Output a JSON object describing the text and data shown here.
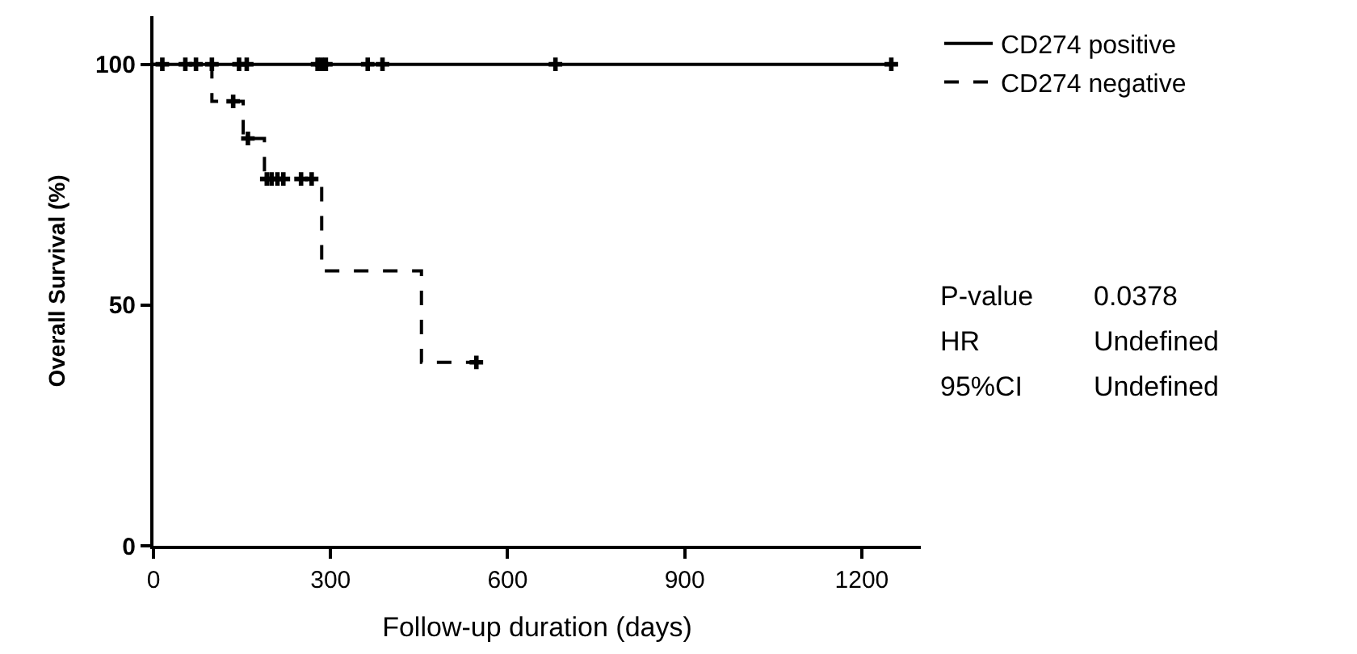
{
  "chart_data": {
    "type": "step",
    "xlabel": "Follow-up duration (days)",
    "ylabel": "Overall Survival (%)",
    "xlim": [
      0,
      1300
    ],
    "xticks": [
      0,
      300,
      600,
      900,
      1200
    ],
    "ylim": [
      0,
      110
    ],
    "yticks": [
      0,
      50,
      100
    ],
    "legend": "top right",
    "series": [
      {
        "name": "CD274 positive",
        "color": "#000000",
        "line_style": "solid",
        "x": [
          0,
          1250
        ],
        "values": [
          100,
          100
        ]
      },
      {
        "name": "CD274 negative",
        "color": "#000000",
        "line_style": "dashed",
        "x": [
          0,
          99,
          152,
          188,
          285,
          454,
          547
        ],
        "values": [
          100,
          92.3,
          84.6,
          76.2,
          57.1,
          38.1,
          38.1
        ]
      },
      {
        "type": "scatter",
        "marker": "cross",
        "color": "#000000",
        "x": [
          15,
          54,
          72,
          99,
          145,
          158,
          278,
          285,
          292,
          363,
          388,
          681,
          1250
        ],
        "values": [
          100,
          100,
          100,
          100,
          100,
          100,
          100,
          100,
          100,
          100,
          100,
          100,
          100
        ]
      },
      {
        "type": "scatter",
        "marker": "cross",
        "color": "#000000",
        "x": [
          135,
          160,
          192,
          200,
          210,
          220,
          250,
          268,
          547
        ],
        "values": [
          92.3,
          84.6,
          76.2,
          76.2,
          76.2,
          76.2,
          76.2,
          76.2,
          38.1
        ]
      }
    ],
    "annotations": [
      "P-value",
      "0.0378",
      "HR",
      "Undefined",
      "95%CI",
      "Undefined"
    ]
  }
}
